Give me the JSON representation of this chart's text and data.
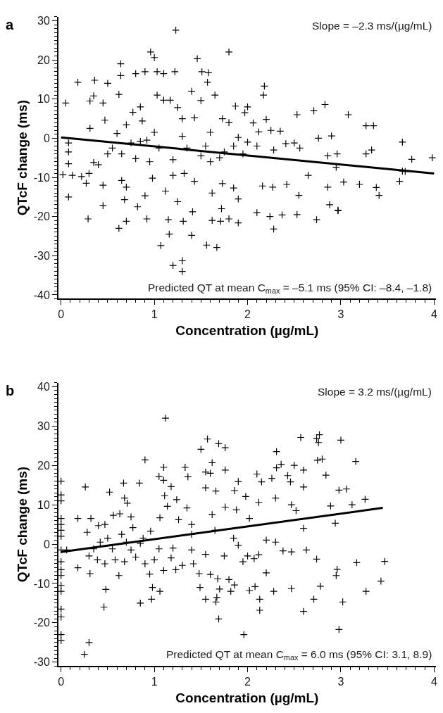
{
  "chart_data": [
    {
      "type": "scatter",
      "xlabel": "Concentration (µg/mL)",
      "ylabel": "QTcF change (ms)",
      "xlim": [
        -0.03,
        4.02
      ],
      "ylim": [
        -41,
        31
      ],
      "xticks": [
        0,
        1,
        2,
        3,
        4
      ],
      "yticks": [
        -40,
        -30,
        -20,
        -10,
        0,
        10,
        20,
        30
      ],
      "annotations": [
        "a",
        "Slope = –2.3 ms/(µg/mL)",
        "Predicted QT at mean C$_{max}$ = –5.1 ms (95% CI: –8.4, –1.8)"
      ],
      "series": [
        {
          "color": "#000000",
          "marker": "cross",
          "x": [
            0.05,
            0.18,
            0.36,
            0.5,
            0.64,
            0.64,
            0.8,
            0.9,
            0.96,
            1.0,
            1.03,
            1.1,
            1.22,
            1.23,
            1.46,
            1.51,
            1.58,
            1.57,
            1.8,
            2.18,
            2.17,
            2.83,
            3.08,
            2.71,
            2.53,
            3.27,
            3.35,
            3.66,
            3.76,
            3.98,
            2.76,
            2.9,
            2.86,
            2.96,
            3.27,
            3.33,
            3.66,
            2.95,
            0.08,
            0.08,
            0.08,
            0.31,
            0.35,
            0.31,
            0.45,
            0.47,
            0.55,
            0.62,
            0.7,
            0.77,
            0.85,
            0.87,
            0.92,
            1.03,
            1.1,
            1.17,
            1.25,
            1.3,
            1.4,
            1.43,
            1.5,
            1.6,
            1.65,
            1.73,
            1.8,
            1.87,
            1.9,
            1.97,
            2.0,
            2.06,
            2.12,
            2.2,
            2.25,
            2.35,
            2.41,
            2.5,
            2.56,
            2.28,
            2.1,
            1.95,
            1.85,
            1.7,
            1.6,
            1.5,
            1.35,
            1.2,
            1.05,
            0.95,
            0.8,
            0.65,
            0.5,
            0.35,
            0.4,
            0.22,
            0.3,
            0.27,
            0.45,
            0.65,
            0.7,
            0.68,
            0.82,
            0.9,
            0.98,
            1.12,
            1.2,
            1.25,
            1.32,
            1.43,
            1.62,
            1.73,
            1.85,
            1.9,
            2.16,
            2.27,
            2.42,
            2.55,
            2.65,
            2.86,
            2.88,
            2.97,
            3.03,
            3.2,
            3.38,
            3.41,
            3.63,
            3.69,
            0.08,
            0.29,
            0.45,
            0.62,
            0.7,
            0.92,
            1.07,
            1.15,
            1.2,
            1.16,
            1.3,
            1.3,
            1.31,
            1.4,
            1.41,
            1.56,
            1.67,
            1.62,
            1.71,
            1.8,
            1.9,
            1.72,
            2.1,
            2.24,
            2.28,
            2.37,
            2.53,
            2.74,
            2.97,
            0.02,
            0.12,
            1.0,
            1.3,
            1.55,
            1.75,
            2.0,
            0.6,
            0.75,
            0.85
          ],
          "values": [
            9,
            14.3,
            14.8,
            14,
            19,
            16,
            16.5,
            17,
            22,
            20.6,
            17,
            16.5,
            17,
            27.6,
            20.3,
            17,
            16.7,
            14.3,
            22,
            13.3,
            11,
            8.6,
            6,
            7,
            6,
            3.2,
            3.2,
            -1,
            -5.4,
            -5,
            0,
            0.6,
            -4.5,
            -4,
            -4,
            -3,
            -8.4,
            -7.4,
            -1.2,
            -3.5,
            -6.5,
            2.5,
            10.8,
            9.5,
            9,
            4.6,
            -2.5,
            11.2,
            3.4,
            6.6,
            8,
            4.4,
            -0.5,
            11,
            9.7,
            9.7,
            7.8,
            5,
            12,
            5.2,
            9.6,
            1.5,
            11,
            5,
            4,
            8.2,
            0.2,
            6.5,
            8,
            3.9,
            1.6,
            4.8,
            2,
            1.8,
            -1.4,
            -1.2,
            -2.5,
            -3,
            -2,
            -4,
            -2,
            -5,
            -6,
            -4.5,
            -2.5,
            -5.5,
            -2.5,
            -6,
            -5.2,
            -4,
            -4,
            -6.2,
            -6.8,
            -9.8,
            -9,
            -11.5,
            -12,
            -10.8,
            -12.5,
            -15.7,
            -17.5,
            -14.7,
            -10.2,
            -13.5,
            -9.5,
            -16.2,
            -9,
            -11,
            -14,
            -11.6,
            -12.7,
            -15.5,
            -12.2,
            -12.5,
            -11.8,
            -14.6,
            -9.5,
            -12.5,
            -17,
            -18.5,
            -11.2,
            -11.8,
            -12.6,
            -14.6,
            -11,
            -8.5,
            -15,
            -20.6,
            -17.2,
            -23,
            -21.2,
            -20.6,
            -27.4,
            -20.8,
            -32.5,
            -24.5,
            -31.3,
            -34,
            -21.2,
            -24.8,
            -18.8,
            -27.3,
            -27.9,
            -21,
            -21.2,
            -20.6,
            -21.6,
            -18,
            -19,
            -20,
            -23.2,
            -19.6,
            -19.5,
            -20.8,
            -18.4,
            -9.3,
            -9.5,
            1.5,
            0.5,
            -2,
            -3.5,
            -1,
            1.2,
            -1.2,
            -0.8
          ]
        },
        {
          "type": "line",
          "marker": "none",
          "color": "#000000",
          "x": [
            0,
            4
          ],
          "values": [
            0.2,
            -9.0
          ]
        }
      ]
    },
    {
      "type": "scatter",
      "xlabel": "Concentration (µg/mL)",
      "ylabel": "QTcF change (ms)",
      "xlim": [
        -0.03,
        4.02
      ],
      "ylim": [
        -31,
        41
      ],
      "xticks": [
        0,
        1,
        2,
        3,
        4
      ],
      "yticks": [
        -30,
        -20,
        -10,
        0,
        10,
        20,
        30,
        40
      ],
      "annotations": [
        "b",
        "Slope = 3.2 ms/(µg/mL)",
        "Predicted QT at mean C$_{max}$ = 6.0 ms (95% CI: 3.1, 8.9)"
      ],
      "series": [
        {
          "color": "#000000",
          "marker": "cross",
          "x": [
            0,
            0,
            0,
            0,
            0,
            0,
            0,
            0,
            0,
            0,
            0,
            0,
            0,
            0,
            0,
            0,
            0,
            0.18,
            0.26,
            0.28,
            0.32,
            0.4,
            0.47,
            0.52,
            0.56,
            0.63,
            0.67,
            0.68,
            0.71,
            0.75,
            0.77,
            0.84,
            0.9,
            1.05,
            1.1,
            1.1,
            1.12,
            1.11,
            1.18,
            1.24,
            1.33,
            1.36,
            1.5,
            1.57,
            1.55,
            1.6,
            1.62,
            1.69,
            1.76,
            1.76,
            1.9,
            1.86,
            1.98,
            2.1,
            2.15,
            2.26,
            2.31,
            2.31,
            2.36,
            2.43,
            2.46,
            2.5,
            2.6,
            2.57,
            2.74,
            2.77,
            2.76,
            2.75,
            2.8,
            2.84,
            3.0,
            3.16,
            3.26,
            2.98,
            3.06,
            3.12,
            2.94,
            2.89,
            2.6,
            2.52,
            2.47,
            2.3,
            2.12,
            2.02,
            1.88,
            1.76,
            1.66,
            1.55,
            1.62,
            1.35,
            1.26,
            1.14,
            1.06,
            0.96,
            0.88,
            0.5,
            0.65,
            0.42,
            0.55,
            0.35,
            0.3,
            0.31,
            0.18,
            0.39,
            0.47,
            0.58,
            0.62,
            0.68,
            0.75,
            0.8,
            0.85,
            0.9,
            0.95,
            1.0,
            1.05,
            1.1,
            1.18,
            1.23,
            1.3,
            1.4,
            1.42,
            1.48,
            1.55,
            1.6,
            1.68,
            1.75,
            1.8,
            1.9,
            1.95,
            2.0,
            2.07,
            2.12,
            2.2,
            2.38,
            2.47,
            2.63,
            2.74,
            2.95,
            2.96,
            3.17,
            3.47,
            3.43,
            3.27,
            3.02,
            2.78,
            2.71,
            2.6,
            2.47,
            2.28,
            2.13,
            2.13,
            2.08,
            2.02,
            1.82,
            1.86,
            1.7,
            1.66,
            1.67,
            1.69,
            1.55,
            1.49,
            1.06,
            0.98,
            0.97,
            0.85,
            0.48,
            0.46,
            0.3,
            0.25,
            1.96,
            2.98,
            0.06,
            1.2,
            0.7,
            1.4,
            2.2,
            2.6,
            2.3,
            1.85,
            1.65,
            1.4
          ],
          "values": [
            16,
            12.5,
            11,
            6.5,
            5,
            3.5,
            2,
            -1.5,
            -4.5,
            -6.5,
            -8,
            -10.5,
            -12,
            -16.5,
            -18.5,
            -23,
            -24.5,
            6.5,
            14.5,
            3,
            6.5,
            4.7,
            5,
            13.2,
            7.3,
            7.7,
            15.5,
            11.7,
            10.4,
            6.9,
            4.2,
            15.5,
            21.4,
            17.2,
            19.5,
            16.2,
            32,
            12.3,
            14.6,
            11.3,
            19.5,
            17.1,
            24.1,
            26.7,
            18.3,
            18,
            20.7,
            25.5,
            24.5,
            18.8,
            15.9,
            13.6,
            12.1,
            17.8,
            15.8,
            16.7,
            23.5,
            19.4,
            20.3,
            17.4,
            15.8,
            20,
            18.8,
            27.1,
            26.8,
            27.8,
            25.8,
            21.3,
            21.6,
            17.5,
            26.4,
            21,
            11.4,
            13.7,
            14,
            10,
            5.3,
            9.7,
            14.5,
            8.5,
            10,
            11.7,
            10.6,
            6.5,
            8.7,
            9.4,
            13.5,
            14.3,
            7.5,
            9.2,
            6.2,
            9.6,
            6.7,
            3.3,
            1.5,
            1.5,
            2.5,
            0.5,
            -1.2,
            -1.2,
            -3,
            -7.5,
            -6,
            -4,
            -5,
            -4,
            -8,
            -4.5,
            -1.5,
            -3.3,
            0.2,
            -5,
            -7.6,
            -4,
            -1.2,
            -6.7,
            -3.5,
            -6.5,
            -5.4,
            -1.5,
            -5,
            -7.5,
            -2.6,
            -7.7,
            -8.8,
            -3,
            -9,
            -0.3,
            -4.5,
            -3,
            -3.7,
            -2.7,
            -7.3,
            -1.7,
            -2,
            -1.5,
            -3.8,
            -8,
            -6.4,
            -4.7,
            -4.4,
            -9.4,
            -12,
            -14.7,
            -10.7,
            -14,
            -17.1,
            -11.3,
            -12,
            -14,
            -16.8,
            -10.8,
            -11.8,
            -12,
            -10.4,
            -11.4,
            -14.7,
            -13.5,
            -19,
            -14,
            -11,
            -12,
            -11,
            -14,
            -15,
            -11.5,
            -16,
            -25,
            -28,
            -23,
            -21.7,
            -1.5,
            -1,
            0.5,
            2.5,
            1,
            4,
            0.5,
            1.5,
            3.5,
            5
          ]
        },
        {
          "type": "line",
          "marker": "none",
          "color": "#000000",
          "x": [
            0,
            3.45
          ],
          "values": [
            -2.0,
            9.2
          ]
        }
      ]
    }
  ]
}
